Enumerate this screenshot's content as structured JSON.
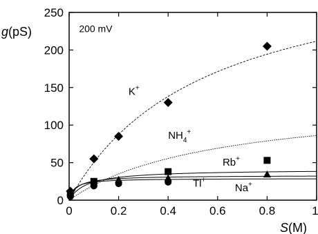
{
  "chart_data": {
    "type": "scatter",
    "annotation": "200 mV",
    "ylabel_italic": "g",
    "ylabel_unit": "(pS)",
    "xlabel_italic": "S",
    "xlabel_unit": "(M)",
    "xlim": [
      0,
      1
    ],
    "ylim": [
      0,
      250
    ],
    "xticks": [
      "0",
      "0.2",
      "0.4",
      "0.6",
      "0.8",
      "1"
    ],
    "xtick_values": [
      0,
      0.2,
      0.4,
      0.6,
      0.8,
      1
    ],
    "yticks": [
      "0",
      "50",
      "100",
      "150",
      "200",
      "250"
    ],
    "ytick_values": [
      0,
      50,
      100,
      150,
      200,
      250
    ],
    "grid": false,
    "series": [
      {
        "name": "K",
        "charge": "+",
        "marker": "diamond",
        "line": "dashed",
        "label_at": [
          0.24,
          140
        ],
        "points": [
          [
            0.005,
            12
          ],
          [
            0.1,
            55
          ],
          [
            0.2,
            85
          ],
          [
            0.4,
            130
          ],
          [
            0.8,
            205
          ]
        ],
        "fit": {
          "model": "michaelis-menten",
          "gmax": 328,
          "km": 0.55
        }
      },
      {
        "name": "NH",
        "subscript": "4",
        "charge": "+",
        "marker": "none",
        "line": "dotted",
        "label_at": [
          0.4,
          82
        ],
        "points": [],
        "fit": {
          "model": "michaelis-menten",
          "gmax": 136,
          "km": 0.58
        }
      },
      {
        "name": "Rb",
        "charge": "+",
        "marker": "square",
        "line": "solid",
        "label_at": [
          0.62,
          46
        ],
        "points": [
          [
            0.005,
            8
          ],
          [
            0.1,
            25
          ],
          [
            0.4,
            38
          ],
          [
            0.8,
            53
          ]
        ],
        "fit": {
          "model": "michaelis-menten",
          "gmax": 41,
          "km": 0.07
        }
      },
      {
        "name": "Na",
        "charge": "+",
        "marker": "triangle",
        "line": "solid",
        "label_at": [
          0.67,
          12
        ],
        "points": [
          [
            0.005,
            10
          ],
          [
            0.1,
            22
          ],
          [
            0.2,
            27
          ],
          [
            0.4,
            29
          ],
          [
            0.8,
            34
          ]
        ],
        "fit": {
          "model": "michaelis-menten",
          "gmax": 33,
          "km": 0.03
        }
      },
      {
        "name": "Tl",
        "charge": "+",
        "marker": "circle",
        "line": "solid",
        "label_at": [
          0.5,
          18
        ],
        "points": [
          [
            0.005,
            5
          ],
          [
            0.1,
            19
          ],
          [
            0.2,
            22
          ],
          [
            0.4,
            24
          ]
        ],
        "fit": {
          "model": "michaelis-menten",
          "gmax": 29,
          "km": 0.02
        }
      }
    ]
  }
}
